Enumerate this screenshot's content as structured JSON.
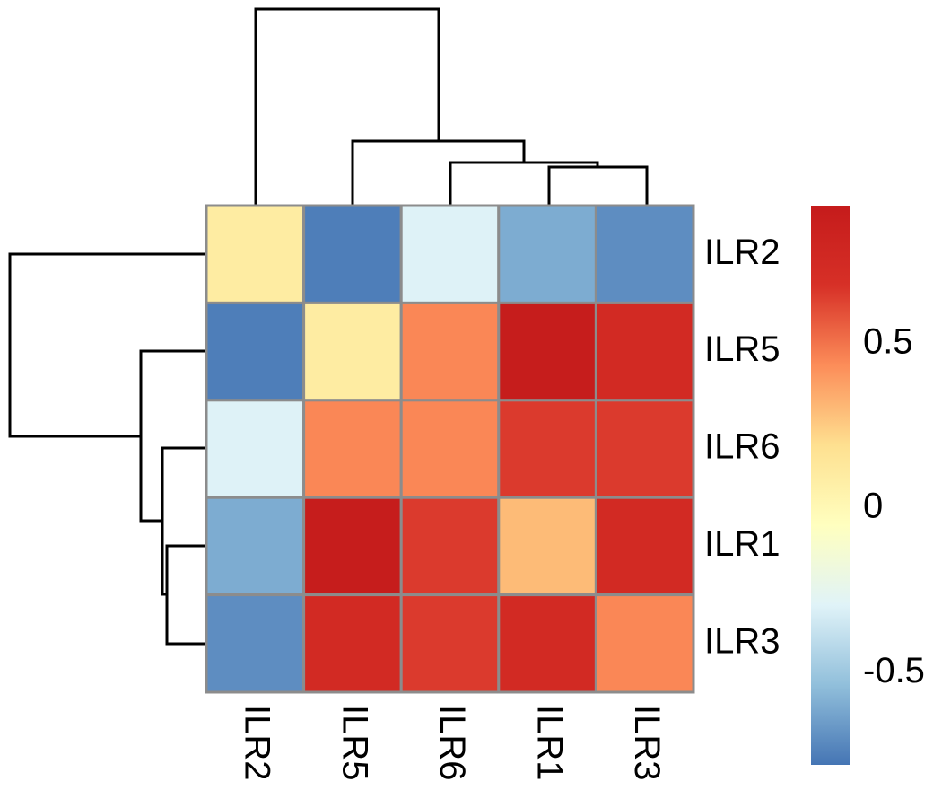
{
  "chart_data": {
    "type": "heatmap",
    "title": "",
    "xlabel": "",
    "ylabel": "",
    "rows": [
      "ILR2",
      "ILR5",
      "ILR6",
      "ILR1",
      "ILR3"
    ],
    "columns": [
      "ILR2",
      "ILR5",
      "ILR6",
      "ILR1",
      "ILR3"
    ],
    "values": [
      [
        0.1,
        -0.75,
        -0.3,
        -0.6,
        -0.7
      ],
      [
        -0.75,
        0.1,
        0.45,
        0.9,
        0.75
      ],
      [
        -0.3,
        0.45,
        0.45,
        0.65,
        0.65
      ],
      [
        -0.6,
        0.9,
        0.65,
        0.3,
        0.75
      ],
      [
        -0.7,
        0.75,
        0.65,
        0.75,
        0.45
      ]
    ],
    "color_scale": {
      "min": -0.78,
      "max": 0.92,
      "colors": [
        "#4575b4",
        "#91bfdb",
        "#e0f3f8",
        "#ffffbf",
        "#fee090",
        "#fc8d59",
        "#d73027",
        "#c51b1b"
      ],
      "ticks": [
        0.5,
        0,
        -0.5
      ],
      "tick_labels": [
        "0.5",
        "0",
        "-0.5"
      ]
    },
    "row_dendrogram": "ILR2 | ((ILR1, ILR3), ILR6), ILR5",
    "column_dendrogram": "ILR2 | ((ILR1, ILR3), ILR6), ILR5",
    "legend_placement": "right"
  }
}
